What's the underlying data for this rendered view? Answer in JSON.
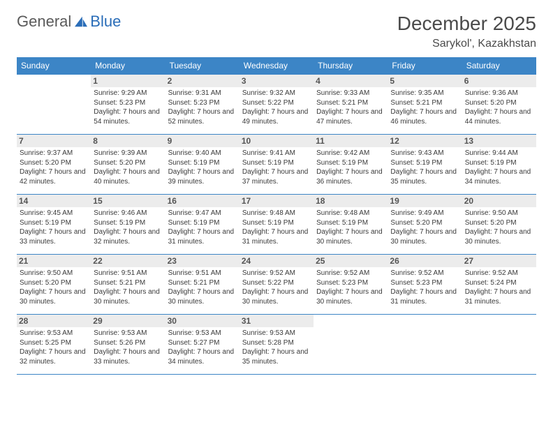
{
  "brand": {
    "part1": "General",
    "part2": "Blue"
  },
  "title": "December 2025",
  "location": "Sarykol', Kazakhstan",
  "colors": {
    "header_bg": "#3c85c6",
    "header_text": "#ffffff",
    "border": "#3c85c6",
    "daynum_bg": "#ececec",
    "body_text": "#3a3a3a",
    "brand_gray": "#5a5a5a",
    "brand_blue": "#2a6db8",
    "page_bg": "#ffffff"
  },
  "typography": {
    "title_fontsize": 28,
    "location_fontsize": 16,
    "dayhead_fontsize": 12,
    "daynum_fontsize": 12,
    "info_fontsize": 10
  },
  "day_names": [
    "Sunday",
    "Monday",
    "Tuesday",
    "Wednesday",
    "Thursday",
    "Friday",
    "Saturday"
  ],
  "weeks": [
    [
      {
        "num": "",
        "sunrise": "",
        "sunset": "",
        "daylight": ""
      },
      {
        "num": "1",
        "sunrise": "Sunrise: 9:29 AM",
        "sunset": "Sunset: 5:23 PM",
        "daylight": "Daylight: 7 hours and 54 minutes."
      },
      {
        "num": "2",
        "sunrise": "Sunrise: 9:31 AM",
        "sunset": "Sunset: 5:23 PM",
        "daylight": "Daylight: 7 hours and 52 minutes."
      },
      {
        "num": "3",
        "sunrise": "Sunrise: 9:32 AM",
        "sunset": "Sunset: 5:22 PM",
        "daylight": "Daylight: 7 hours and 49 minutes."
      },
      {
        "num": "4",
        "sunrise": "Sunrise: 9:33 AM",
        "sunset": "Sunset: 5:21 PM",
        "daylight": "Daylight: 7 hours and 47 minutes."
      },
      {
        "num": "5",
        "sunrise": "Sunrise: 9:35 AM",
        "sunset": "Sunset: 5:21 PM",
        "daylight": "Daylight: 7 hours and 46 minutes."
      },
      {
        "num": "6",
        "sunrise": "Sunrise: 9:36 AM",
        "sunset": "Sunset: 5:20 PM",
        "daylight": "Daylight: 7 hours and 44 minutes."
      }
    ],
    [
      {
        "num": "7",
        "sunrise": "Sunrise: 9:37 AM",
        "sunset": "Sunset: 5:20 PM",
        "daylight": "Daylight: 7 hours and 42 minutes."
      },
      {
        "num": "8",
        "sunrise": "Sunrise: 9:39 AM",
        "sunset": "Sunset: 5:20 PM",
        "daylight": "Daylight: 7 hours and 40 minutes."
      },
      {
        "num": "9",
        "sunrise": "Sunrise: 9:40 AM",
        "sunset": "Sunset: 5:19 PM",
        "daylight": "Daylight: 7 hours and 39 minutes."
      },
      {
        "num": "10",
        "sunrise": "Sunrise: 9:41 AM",
        "sunset": "Sunset: 5:19 PM",
        "daylight": "Daylight: 7 hours and 37 minutes."
      },
      {
        "num": "11",
        "sunrise": "Sunrise: 9:42 AM",
        "sunset": "Sunset: 5:19 PM",
        "daylight": "Daylight: 7 hours and 36 minutes."
      },
      {
        "num": "12",
        "sunrise": "Sunrise: 9:43 AM",
        "sunset": "Sunset: 5:19 PM",
        "daylight": "Daylight: 7 hours and 35 minutes."
      },
      {
        "num": "13",
        "sunrise": "Sunrise: 9:44 AM",
        "sunset": "Sunset: 5:19 PM",
        "daylight": "Daylight: 7 hours and 34 minutes."
      }
    ],
    [
      {
        "num": "14",
        "sunrise": "Sunrise: 9:45 AM",
        "sunset": "Sunset: 5:19 PM",
        "daylight": "Daylight: 7 hours and 33 minutes."
      },
      {
        "num": "15",
        "sunrise": "Sunrise: 9:46 AM",
        "sunset": "Sunset: 5:19 PM",
        "daylight": "Daylight: 7 hours and 32 minutes."
      },
      {
        "num": "16",
        "sunrise": "Sunrise: 9:47 AM",
        "sunset": "Sunset: 5:19 PM",
        "daylight": "Daylight: 7 hours and 31 minutes."
      },
      {
        "num": "17",
        "sunrise": "Sunrise: 9:48 AM",
        "sunset": "Sunset: 5:19 PM",
        "daylight": "Daylight: 7 hours and 31 minutes."
      },
      {
        "num": "18",
        "sunrise": "Sunrise: 9:48 AM",
        "sunset": "Sunset: 5:19 PM",
        "daylight": "Daylight: 7 hours and 30 minutes."
      },
      {
        "num": "19",
        "sunrise": "Sunrise: 9:49 AM",
        "sunset": "Sunset: 5:20 PM",
        "daylight": "Daylight: 7 hours and 30 minutes."
      },
      {
        "num": "20",
        "sunrise": "Sunrise: 9:50 AM",
        "sunset": "Sunset: 5:20 PM",
        "daylight": "Daylight: 7 hours and 30 minutes."
      }
    ],
    [
      {
        "num": "21",
        "sunrise": "Sunrise: 9:50 AM",
        "sunset": "Sunset: 5:20 PM",
        "daylight": "Daylight: 7 hours and 30 minutes."
      },
      {
        "num": "22",
        "sunrise": "Sunrise: 9:51 AM",
        "sunset": "Sunset: 5:21 PM",
        "daylight": "Daylight: 7 hours and 30 minutes."
      },
      {
        "num": "23",
        "sunrise": "Sunrise: 9:51 AM",
        "sunset": "Sunset: 5:21 PM",
        "daylight": "Daylight: 7 hours and 30 minutes."
      },
      {
        "num": "24",
        "sunrise": "Sunrise: 9:52 AM",
        "sunset": "Sunset: 5:22 PM",
        "daylight": "Daylight: 7 hours and 30 minutes."
      },
      {
        "num": "25",
        "sunrise": "Sunrise: 9:52 AM",
        "sunset": "Sunset: 5:23 PM",
        "daylight": "Daylight: 7 hours and 30 minutes."
      },
      {
        "num": "26",
        "sunrise": "Sunrise: 9:52 AM",
        "sunset": "Sunset: 5:23 PM",
        "daylight": "Daylight: 7 hours and 31 minutes."
      },
      {
        "num": "27",
        "sunrise": "Sunrise: 9:52 AM",
        "sunset": "Sunset: 5:24 PM",
        "daylight": "Daylight: 7 hours and 31 minutes."
      }
    ],
    [
      {
        "num": "28",
        "sunrise": "Sunrise: 9:53 AM",
        "sunset": "Sunset: 5:25 PM",
        "daylight": "Daylight: 7 hours and 32 minutes."
      },
      {
        "num": "29",
        "sunrise": "Sunrise: 9:53 AM",
        "sunset": "Sunset: 5:26 PM",
        "daylight": "Daylight: 7 hours and 33 minutes."
      },
      {
        "num": "30",
        "sunrise": "Sunrise: 9:53 AM",
        "sunset": "Sunset: 5:27 PM",
        "daylight": "Daylight: 7 hours and 34 minutes."
      },
      {
        "num": "31",
        "sunrise": "Sunrise: 9:53 AM",
        "sunset": "Sunset: 5:28 PM",
        "daylight": "Daylight: 7 hours and 35 minutes."
      },
      {
        "num": "",
        "sunrise": "",
        "sunset": "",
        "daylight": ""
      },
      {
        "num": "",
        "sunrise": "",
        "sunset": "",
        "daylight": ""
      },
      {
        "num": "",
        "sunrise": "",
        "sunset": "",
        "daylight": ""
      }
    ]
  ]
}
